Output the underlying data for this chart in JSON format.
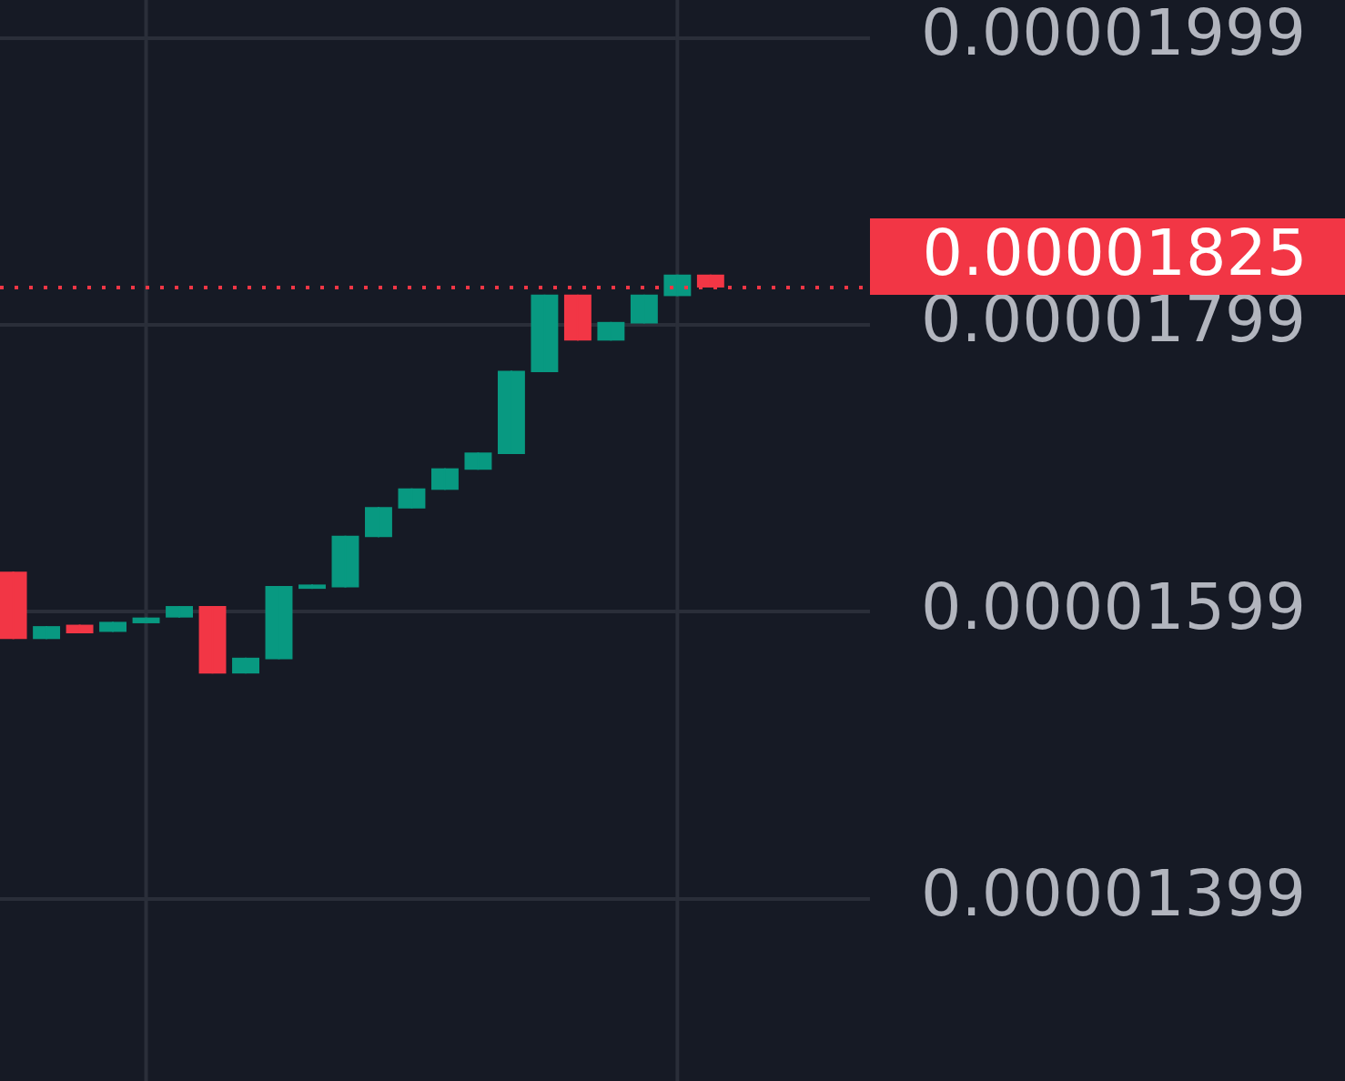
{
  "chart_data": {
    "type": "candlestick",
    "categories": [
      null,
      null,
      null,
      null,
      null,
      null,
      null,
      null,
      null,
      null,
      null,
      null,
      null,
      null,
      null,
      null,
      null,
      null,
      null,
      null,
      null,
      null
    ],
    "ohlc": [
      [
        1.627e-05,
        1.627e-05,
        1.58e-05,
        1.58e-05
      ],
      [
        1.58e-05,
        1.589e-05,
        1.58e-05,
        1.589e-05
      ],
      [
        1.59e-05,
        1.59e-05,
        1.584e-05,
        1.584e-05
      ],
      [
        1.585e-05,
        1.592e-05,
        1.585e-05,
        1.592e-05
      ],
      [
        1.591e-05,
        1.595e-05,
        1.591e-05,
        1.595e-05
      ],
      [
        1.595e-05,
        1.603e-05,
        1.595e-05,
        1.603e-05
      ],
      [
        1.603e-05,
        1.603e-05,
        1.556e-05,
        1.556e-05
      ],
      [
        1.556e-05,
        1.567e-05,
        1.556e-05,
        1.567e-05
      ],
      [
        1.566e-05,
        1.617e-05,
        1.566e-05,
        1.617e-05
      ],
      [
        1.615e-05,
        1.618e-05,
        1.615e-05,
        1.618e-05
      ],
      [
        1.616e-05,
        1.652e-05,
        1.616e-05,
        1.652e-05
      ],
      [
        1.651e-05,
        1.672e-05,
        1.651e-05,
        1.672e-05
      ],
      [
        1.671e-05,
        1.685e-05,
        1.671e-05,
        1.685e-05
      ],
      [
        1.684e-05,
        1.699e-05,
        1.684e-05,
        1.699e-05
      ],
      [
        1.698e-05,
        1.71e-05,
        1.698e-05,
        1.71e-05
      ],
      [
        1.709e-05,
        1.767e-05,
        1.709e-05,
        1.767e-05
      ],
      [
        1.766e-05,
        1.82e-05,
        1.766e-05,
        1.82e-05
      ],
      [
        1.82e-05,
        1.82e-05,
        1.788e-05,
        1.788e-05
      ],
      [
        1.788e-05,
        1.801e-05,
        1.788e-05,
        1.801e-05
      ],
      [
        1.8e-05,
        1.82e-05,
        1.8e-05,
        1.82e-05
      ],
      [
        1.819e-05,
        1.834e-05,
        1.819e-05,
        1.834e-05
      ],
      [
        1.834e-05,
        1.834e-05,
        1.825e-05,
        1.825e-05
      ]
    ],
    "colors": [
      "#f23645",
      "#089981",
      "#f23645",
      "#089981",
      "#089981",
      "#089981",
      "#f23645",
      "#089981",
      "#089981",
      "#089981",
      "#089981",
      "#089981",
      "#089981",
      "#089981",
      "#089981",
      "#089981",
      "#089981",
      "#f23645",
      "#089981",
      "#089981",
      "#089981",
      "#f23645"
    ],
    "ylim": [
      1.272e-05,
      2e-05
    ],
    "yticks": [
      {
        "value": 1.399e-05,
        "label": "0.00001399"
      },
      {
        "value": 1.599e-05,
        "label": "0.00001599"
      },
      {
        "value": 1.799e-05,
        "label": "0.00001799"
      },
      {
        "value": 1.999e-05,
        "label": "0.00001999"
      }
    ],
    "ref_lines": [
      {
        "axis": "y",
        "value": 1.825e-05,
        "label": "0.00001825",
        "color": "#f23645",
        "line_style": "dotted"
      }
    ],
    "grid": true,
    "tick_labels": "y"
  }
}
